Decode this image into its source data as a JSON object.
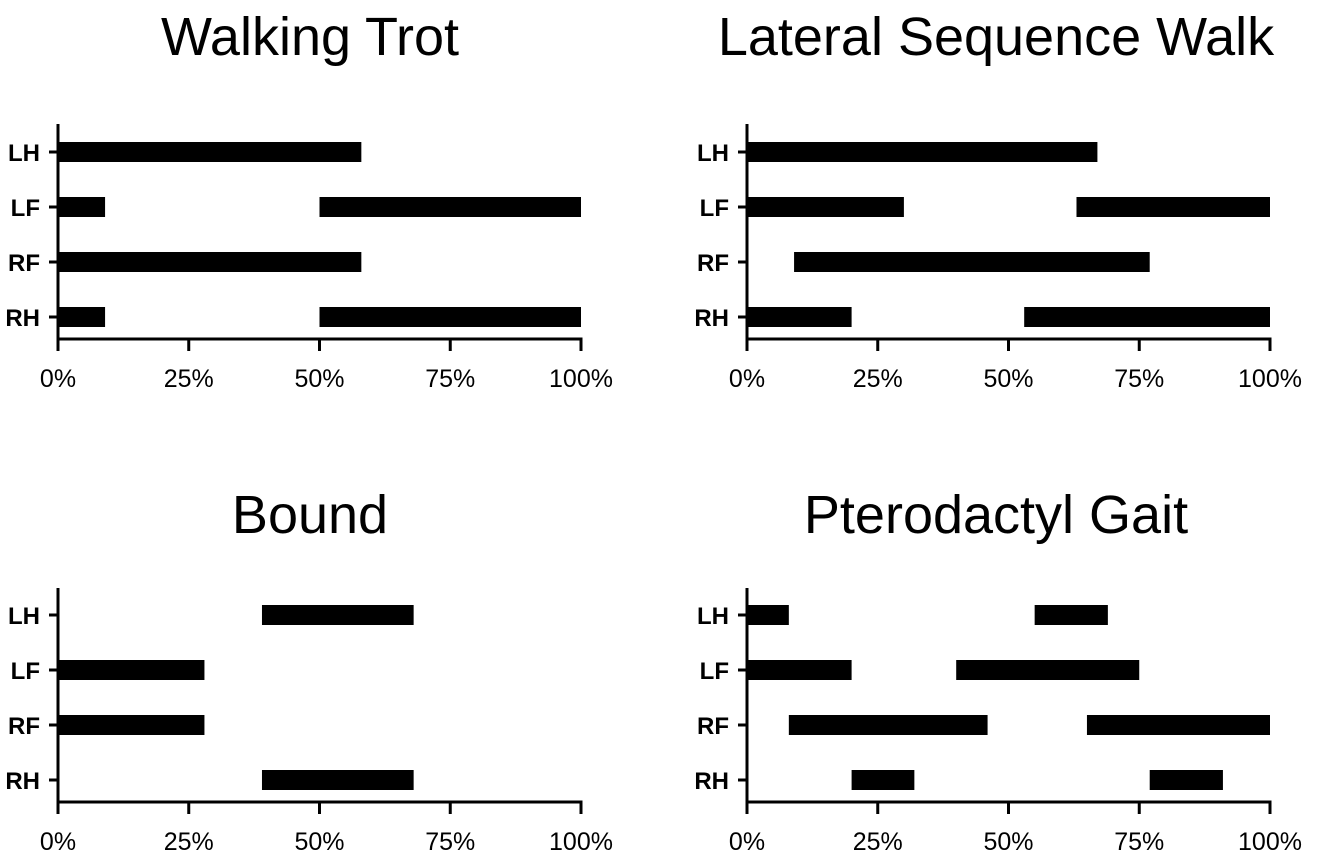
{
  "chart_data": [
    {
      "type": "bar",
      "title": "Walking Trot",
      "categories": [
        "LH",
        "LF",
        "RF",
        "RH"
      ],
      "xlim": [
        0,
        100
      ],
      "xticks": [
        "0%",
        "25%",
        "50%",
        "75%",
        "100%"
      ],
      "series": [
        {
          "category": "LH",
          "intervals": [
            [
              0,
              58
            ]
          ]
        },
        {
          "category": "LF",
          "intervals": [
            [
              0,
              9
            ],
            [
              50,
              100
            ]
          ]
        },
        {
          "category": "RF",
          "intervals": [
            [
              0,
              58
            ]
          ]
        },
        {
          "category": "RH",
          "intervals": [
            [
              0,
              9
            ],
            [
              50,
              100
            ]
          ]
        }
      ]
    },
    {
      "type": "bar",
      "title": "Lateral Sequence Walk",
      "categories": [
        "LH",
        "LF",
        "RF",
        "RH"
      ],
      "xlim": [
        0,
        100
      ],
      "xticks": [
        "0%",
        "25%",
        "50%",
        "75%",
        "100%"
      ],
      "series": [
        {
          "category": "LH",
          "intervals": [
            [
              0,
              67
            ]
          ]
        },
        {
          "category": "LF",
          "intervals": [
            [
              0,
              30
            ],
            [
              63,
              100
            ]
          ]
        },
        {
          "category": "RF",
          "intervals": [
            [
              9,
              77
            ]
          ]
        },
        {
          "category": "RH",
          "intervals": [
            [
              0,
              20
            ],
            [
              53,
              100
            ]
          ]
        }
      ]
    },
    {
      "type": "bar",
      "title": "Bound",
      "categories": [
        "LH",
        "LF",
        "RF",
        "RH"
      ],
      "xlim": [
        0,
        100
      ],
      "xticks": [
        "0%",
        "25%",
        "50%",
        "75%",
        "100%"
      ],
      "series": [
        {
          "category": "LH",
          "intervals": [
            [
              39,
              68
            ]
          ]
        },
        {
          "category": "LF",
          "intervals": [
            [
              0,
              28
            ]
          ]
        },
        {
          "category": "RF",
          "intervals": [
            [
              0,
              28
            ]
          ]
        },
        {
          "category": "RH",
          "intervals": [
            [
              39,
              68
            ]
          ]
        }
      ]
    },
    {
      "type": "bar",
      "title": "Pterodactyl Gait",
      "categories": [
        "LH",
        "LF",
        "RF",
        "RH"
      ],
      "xlim": [
        0,
        100
      ],
      "xticks": [
        "0%",
        "25%",
        "50%",
        "75%",
        "100%"
      ],
      "series": [
        {
          "category": "LH",
          "intervals": [
            [
              0,
              8
            ],
            [
              55,
              69
            ]
          ]
        },
        {
          "category": "LF",
          "intervals": [
            [
              0,
              20
            ],
            [
              40,
              75
            ]
          ]
        },
        {
          "category": "RF",
          "intervals": [
            [
              8,
              46
            ],
            [
              65,
              100
            ]
          ]
        },
        {
          "category": "RH",
          "intervals": [
            [
              20,
              32
            ],
            [
              77,
              91
            ]
          ]
        }
      ]
    }
  ]
}
